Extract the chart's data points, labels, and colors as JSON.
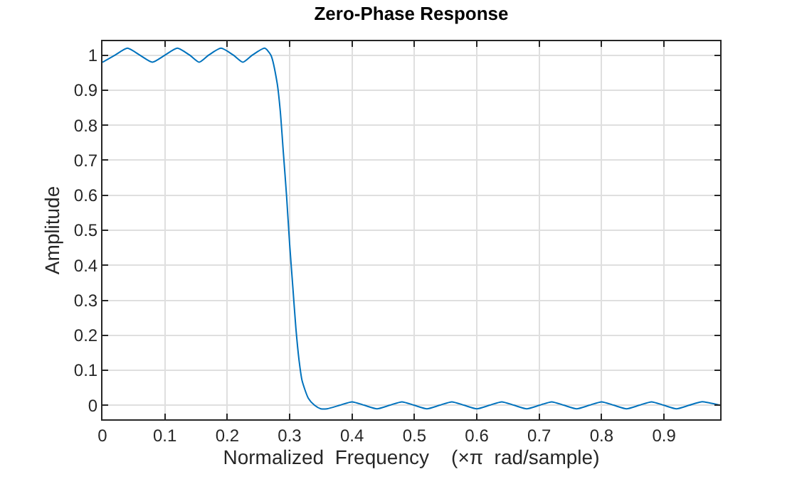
{
  "chart_data": {
    "type": "line",
    "title": "Zero-Phase Response",
    "xlabel": "Normalized  Frequency    (×π  rad/sample)",
    "ylabel": "Amplitude",
    "x": [
      0,
      0.02,
      0.04,
      0.06,
      0.08,
      0.1,
      0.12,
      0.14,
      0.155,
      0.17,
      0.19,
      0.21,
      0.225,
      0.24,
      0.26,
      0.27,
      0.28,
      0.285,
      0.29,
      0.295,
      0.3,
      0.305,
      0.31,
      0.315,
      0.32,
      0.33,
      0.34,
      0.35,
      0.36,
      0.38,
      0.4,
      0.42,
      0.44,
      0.46,
      0.48,
      0.5,
      0.52,
      0.54,
      0.56,
      0.58,
      0.6,
      0.62,
      0.64,
      0.66,
      0.68,
      0.7,
      0.72,
      0.74,
      0.76,
      0.78,
      0.8,
      0.82,
      0.84,
      0.86,
      0.88,
      0.9,
      0.92,
      0.94,
      0.96,
      0.99
    ],
    "series": [
      {
        "color": "#0072bd",
        "values": [
          0.98,
          1.0,
          1.02,
          1.0,
          0.98,
          1.0,
          1.02,
          1.0,
          0.98,
          1.0,
          1.02,
          1.0,
          0.98,
          1.0,
          1.02,
          1.0,
          0.92,
          0.84,
          0.72,
          0.6,
          0.46,
          0.34,
          0.22,
          0.13,
          0.07,
          0.02,
          0,
          -0.01,
          -0.01,
          0,
          0.01,
          0,
          -0.01,
          0,
          0.01,
          0,
          -0.01,
          0,
          0.01,
          0,
          -0.01,
          0,
          0.01,
          0,
          -0.01,
          0,
          0.01,
          0,
          -0.01,
          0,
          0.01,
          0,
          -0.01,
          0,
          0.01,
          0,
          -0.01,
          0,
          0.01,
          0
        ]
      }
    ],
    "xlim": [
      0,
      0.99
    ],
    "xticks": [
      0,
      0.1,
      0.2,
      0.3,
      0.4,
      0.5,
      0.6,
      0.7,
      0.8,
      0.9
    ],
    "ylim": [
      -0.04,
      1.04
    ],
    "yticks": [
      0,
      0.1,
      0.2,
      0.3,
      0.4,
      0.5,
      0.6,
      0.7,
      0.8,
      0.9,
      1
    ],
    "grid": true,
    "marker": "none",
    "line_style": "solid"
  }
}
